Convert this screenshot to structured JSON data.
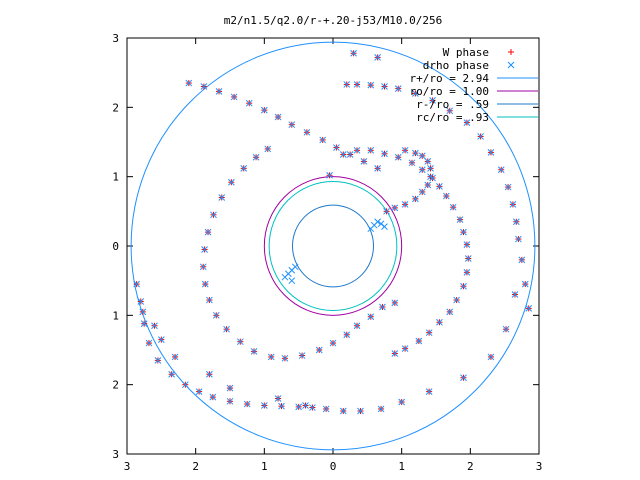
{
  "chart_data": {
    "type": "scatter",
    "title": "m2/n1.5/q2.0/r-+.20-j53/M10.0/256",
    "x_ticks": [
      "3",
      "2",
      "1",
      "0",
      "1",
      "2",
      "3"
    ],
    "y_ticks": [
      "3",
      "2",
      "1",
      "0",
      "1",
      "2",
      "3"
    ],
    "xlim": [
      -3,
      3
    ],
    "ylim": [
      -3,
      3
    ],
    "grid": false,
    "legend_position": "top-right",
    "legend": [
      {
        "label": "W phase",
        "kind": "point",
        "symbol": "plus",
        "color": "#ff0000"
      },
      {
        "label": "drho phase",
        "kind": "point",
        "symbol": "cross",
        "color": "#1e90ff"
      },
      {
        "label": "r+/ro = 2.94",
        "kind": "circle",
        "radius": 2.94,
        "color": "#1e90ff"
      },
      {
        "label": "ro/ro = 1.00",
        "kind": "circle",
        "radius": 1.0,
        "color": "#a000a0"
      },
      {
        "label": "r-/ro = .59",
        "kind": "circle",
        "radius": 0.59,
        "color": "#1e78c8"
      },
      {
        "label": "rc/ro = .93",
        "kind": "circle",
        "radius": 0.93,
        "color": "#00c0c0"
      }
    ],
    "series": [
      {
        "name": "W phase",
        "symbol": "plus",
        "color": "#ff0000",
        "x": [
          -0.05,
          0.15,
          0.35,
          0.55,
          0.75,
          0.95,
          1.15,
          1.3,
          1.45,
          1.55,
          1.65,
          1.75,
          1.85,
          1.9,
          1.95,
          1.97,
          1.95,
          1.9,
          1.8,
          1.7,
          1.55,
          1.4,
          1.25,
          1.05,
          0.9,
          -0.95,
          -1.12,
          -1.3,
          -1.48,
          -1.62,
          -1.74,
          -1.82,
          -1.87,
          -1.89,
          -1.86,
          -1.8,
          -1.7,
          -1.55,
          -1.35,
          -1.15,
          -0.9,
          -0.7,
          -0.45,
          -0.2,
          0.0,
          0.2,
          0.35,
          0.55,
          0.72,
          0.9,
          1.05,
          1.2,
          1.3,
          1.38,
          1.42,
          1.42,
          1.38,
          1.3,
          1.2,
          1.05,
          0.9,
          0.78,
          0.2,
          0.35,
          0.55,
          0.75,
          0.95,
          1.2,
          1.45,
          1.7,
          1.95,
          2.15,
          2.3,
          2.45,
          2.55,
          2.62,
          2.67,
          2.7,
          2.75,
          2.8,
          2.85,
          -2.1,
          -1.88,
          -1.66,
          -1.44,
          -1.22,
          -1.0,
          -0.8,
          -0.6,
          -0.38,
          -0.15,
          0.05,
          0.25,
          0.45,
          0.65,
          -0.3,
          -0.5,
          -0.75,
          -1.0,
          -1.25,
          -1.5,
          -1.75,
          -1.95,
          -2.15,
          -2.35,
          -2.55,
          -2.68,
          -2.75,
          -2.8,
          -2.86,
          -2.77,
          -2.6,
          -2.5,
          -2.3,
          -1.8,
          -1.5,
          -0.8,
          -0.4,
          -0.1,
          0.15,
          0.4,
          0.7,
          1.0,
          1.4,
          1.9,
          2.3,
          2.52,
          2.65,
          0.3,
          0.65
        ],
        "y": [
          1.02,
          1.32,
          1.38,
          1.38,
          1.33,
          1.28,
          1.2,
          1.1,
          0.98,
          0.86,
          0.72,
          0.56,
          0.38,
          0.2,
          0.02,
          -0.18,
          -0.38,
          -0.58,
          -0.78,
          -0.95,
          -1.1,
          -1.25,
          -1.37,
          -1.48,
          -1.55,
          1.4,
          1.28,
          1.12,
          0.92,
          0.7,
          0.45,
          0.2,
          -0.05,
          -0.3,
          -0.55,
          -0.78,
          -1.0,
          -1.2,
          -1.38,
          -1.52,
          -1.6,
          -1.62,
          -1.58,
          -1.5,
          -1.4,
          -1.28,
          -1.15,
          -1.02,
          -0.88,
          -0.82,
          1.38,
          1.34,
          1.3,
          1.22,
          1.12,
          1.0,
          0.88,
          0.78,
          0.68,
          0.6,
          0.55,
          0.5,
          2.33,
          2.33,
          2.32,
          2.3,
          2.27,
          2.2,
          2.1,
          1.95,
          1.78,
          1.58,
          1.35,
          1.1,
          0.85,
          0.6,
          0.35,
          0.1,
          -0.2,
          -0.55,
          -0.9,
          2.35,
          2.3,
          2.23,
          2.15,
          2.06,
          1.96,
          1.86,
          1.75,
          1.64,
          1.53,
          1.42,
          1.32,
          1.22,
          1.12,
          -2.33,
          -2.32,
          -2.31,
          -2.3,
          -2.28,
          -2.24,
          -2.18,
          -2.1,
          -2.0,
          -1.85,
          -1.65,
          -1.4,
          -1.12,
          -0.8,
          -0.55,
          -0.95,
          -1.15,
          -1.35,
          -1.6,
          -1.85,
          -2.05,
          -2.2,
          -2.3,
          -2.35,
          -2.38,
          -2.38,
          -2.35,
          -2.25,
          -2.1,
          -1.9,
          -1.6,
          -1.2,
          -0.7,
          2.78,
          2.72
        ],
        "markers": "plus"
      },
      {
        "name": "drho phase",
        "symbol": "cross",
        "color": "#1e90ff",
        "x": [
          -0.05,
          0.15,
          0.35,
          0.55,
          0.75,
          0.95,
          1.15,
          1.3,
          1.45,
          1.55,
          1.65,
          1.75,
          1.85,
          1.9,
          1.95,
          1.97,
          1.95,
          1.9,
          1.8,
          1.7,
          1.55,
          1.4,
          1.25,
          1.05,
          0.9,
          -0.95,
          -1.12,
          -1.3,
          -1.48,
          -1.62,
          -1.74,
          -1.82,
          -1.87,
          -1.89,
          -1.86,
          -1.8,
          -1.7,
          -1.55,
          -1.35,
          -1.15,
          -0.9,
          -0.7,
          -0.45,
          -0.2,
          0.0,
          0.2,
          0.35,
          0.55,
          0.72,
          0.9,
          1.05,
          1.2,
          1.3,
          1.38,
          1.42,
          1.42,
          1.38,
          1.3,
          1.2,
          1.05,
          0.9,
          0.78,
          0.2,
          0.35,
          0.55,
          0.75,
          0.95,
          1.2,
          1.45,
          1.7,
          1.95,
          2.15,
          2.3,
          2.45,
          2.55,
          2.62,
          2.67,
          2.7,
          2.75,
          2.8,
          2.85,
          -2.1,
          -1.88,
          -1.66,
          -1.44,
          -1.22,
          -1.0,
          -0.8,
          -0.6,
          -0.38,
          -0.15,
          0.05,
          0.25,
          0.45,
          0.65,
          -0.3,
          -0.5,
          -0.75,
          -1.0,
          -1.25,
          -1.5,
          -1.75,
          -1.95,
          -2.15,
          -2.35,
          -2.55,
          -2.68,
          -2.75,
          -2.8,
          -2.86,
          -2.77,
          -2.6,
          -2.5,
          -2.3,
          -1.8,
          -1.5,
          -0.8,
          -0.4,
          -0.1,
          0.15,
          0.4,
          0.7,
          1.0,
          1.4,
          1.9,
          2.3,
          2.52,
          2.65,
          0.3,
          0.65,
          -0.55,
          -0.6,
          -0.65,
          -0.7,
          -0.6,
          0.6,
          0.65,
          0.7,
          0.75,
          0.55
        ],
        "y": [
          1.02,
          1.32,
          1.38,
          1.38,
          1.33,
          1.28,
          1.2,
          1.1,
          0.98,
          0.86,
          0.72,
          0.56,
          0.38,
          0.2,
          0.02,
          -0.18,
          -0.38,
          -0.58,
          -0.78,
          -0.95,
          -1.1,
          -1.25,
          -1.37,
          -1.48,
          -1.55,
          1.4,
          1.28,
          1.12,
          0.92,
          0.7,
          0.45,
          0.2,
          -0.05,
          -0.3,
          -0.55,
          -0.78,
          -1.0,
          -1.2,
          -1.38,
          -1.52,
          -1.6,
          -1.62,
          -1.58,
          -1.5,
          -1.4,
          -1.28,
          -1.15,
          -1.02,
          -0.88,
          -0.82,
          1.38,
          1.34,
          1.3,
          1.22,
          1.12,
          1.0,
          0.88,
          0.78,
          0.68,
          0.6,
          0.55,
          0.5,
          2.33,
          2.33,
          2.32,
          2.3,
          2.27,
          2.2,
          2.1,
          1.95,
          1.78,
          1.58,
          1.35,
          1.1,
          0.85,
          0.6,
          0.35,
          0.1,
          -0.2,
          -0.55,
          -0.9,
          2.35,
          2.3,
          2.23,
          2.15,
          2.06,
          1.96,
          1.86,
          1.75,
          1.64,
          1.53,
          1.42,
          1.32,
          1.22,
          1.12,
          -2.33,
          -2.32,
          -2.31,
          -2.3,
          -2.28,
          -2.24,
          -2.18,
          -2.1,
          -2.0,
          -1.85,
          -1.65,
          -1.4,
          -1.12,
          -0.8,
          -0.55,
          -0.95,
          -1.15,
          -1.35,
          -1.6,
          -1.85,
          -2.05,
          -2.2,
          -2.3,
          -2.35,
          -2.38,
          -2.38,
          -2.35,
          -2.25,
          -2.1,
          -1.9,
          -1.6,
          -1.2,
          -0.7,
          2.78,
          2.72,
          -0.3,
          -0.35,
          -0.4,
          -0.45,
          -0.5,
          0.3,
          0.35,
          0.32,
          0.28,
          0.25
        ],
        "markers": "cross"
      }
    ]
  }
}
